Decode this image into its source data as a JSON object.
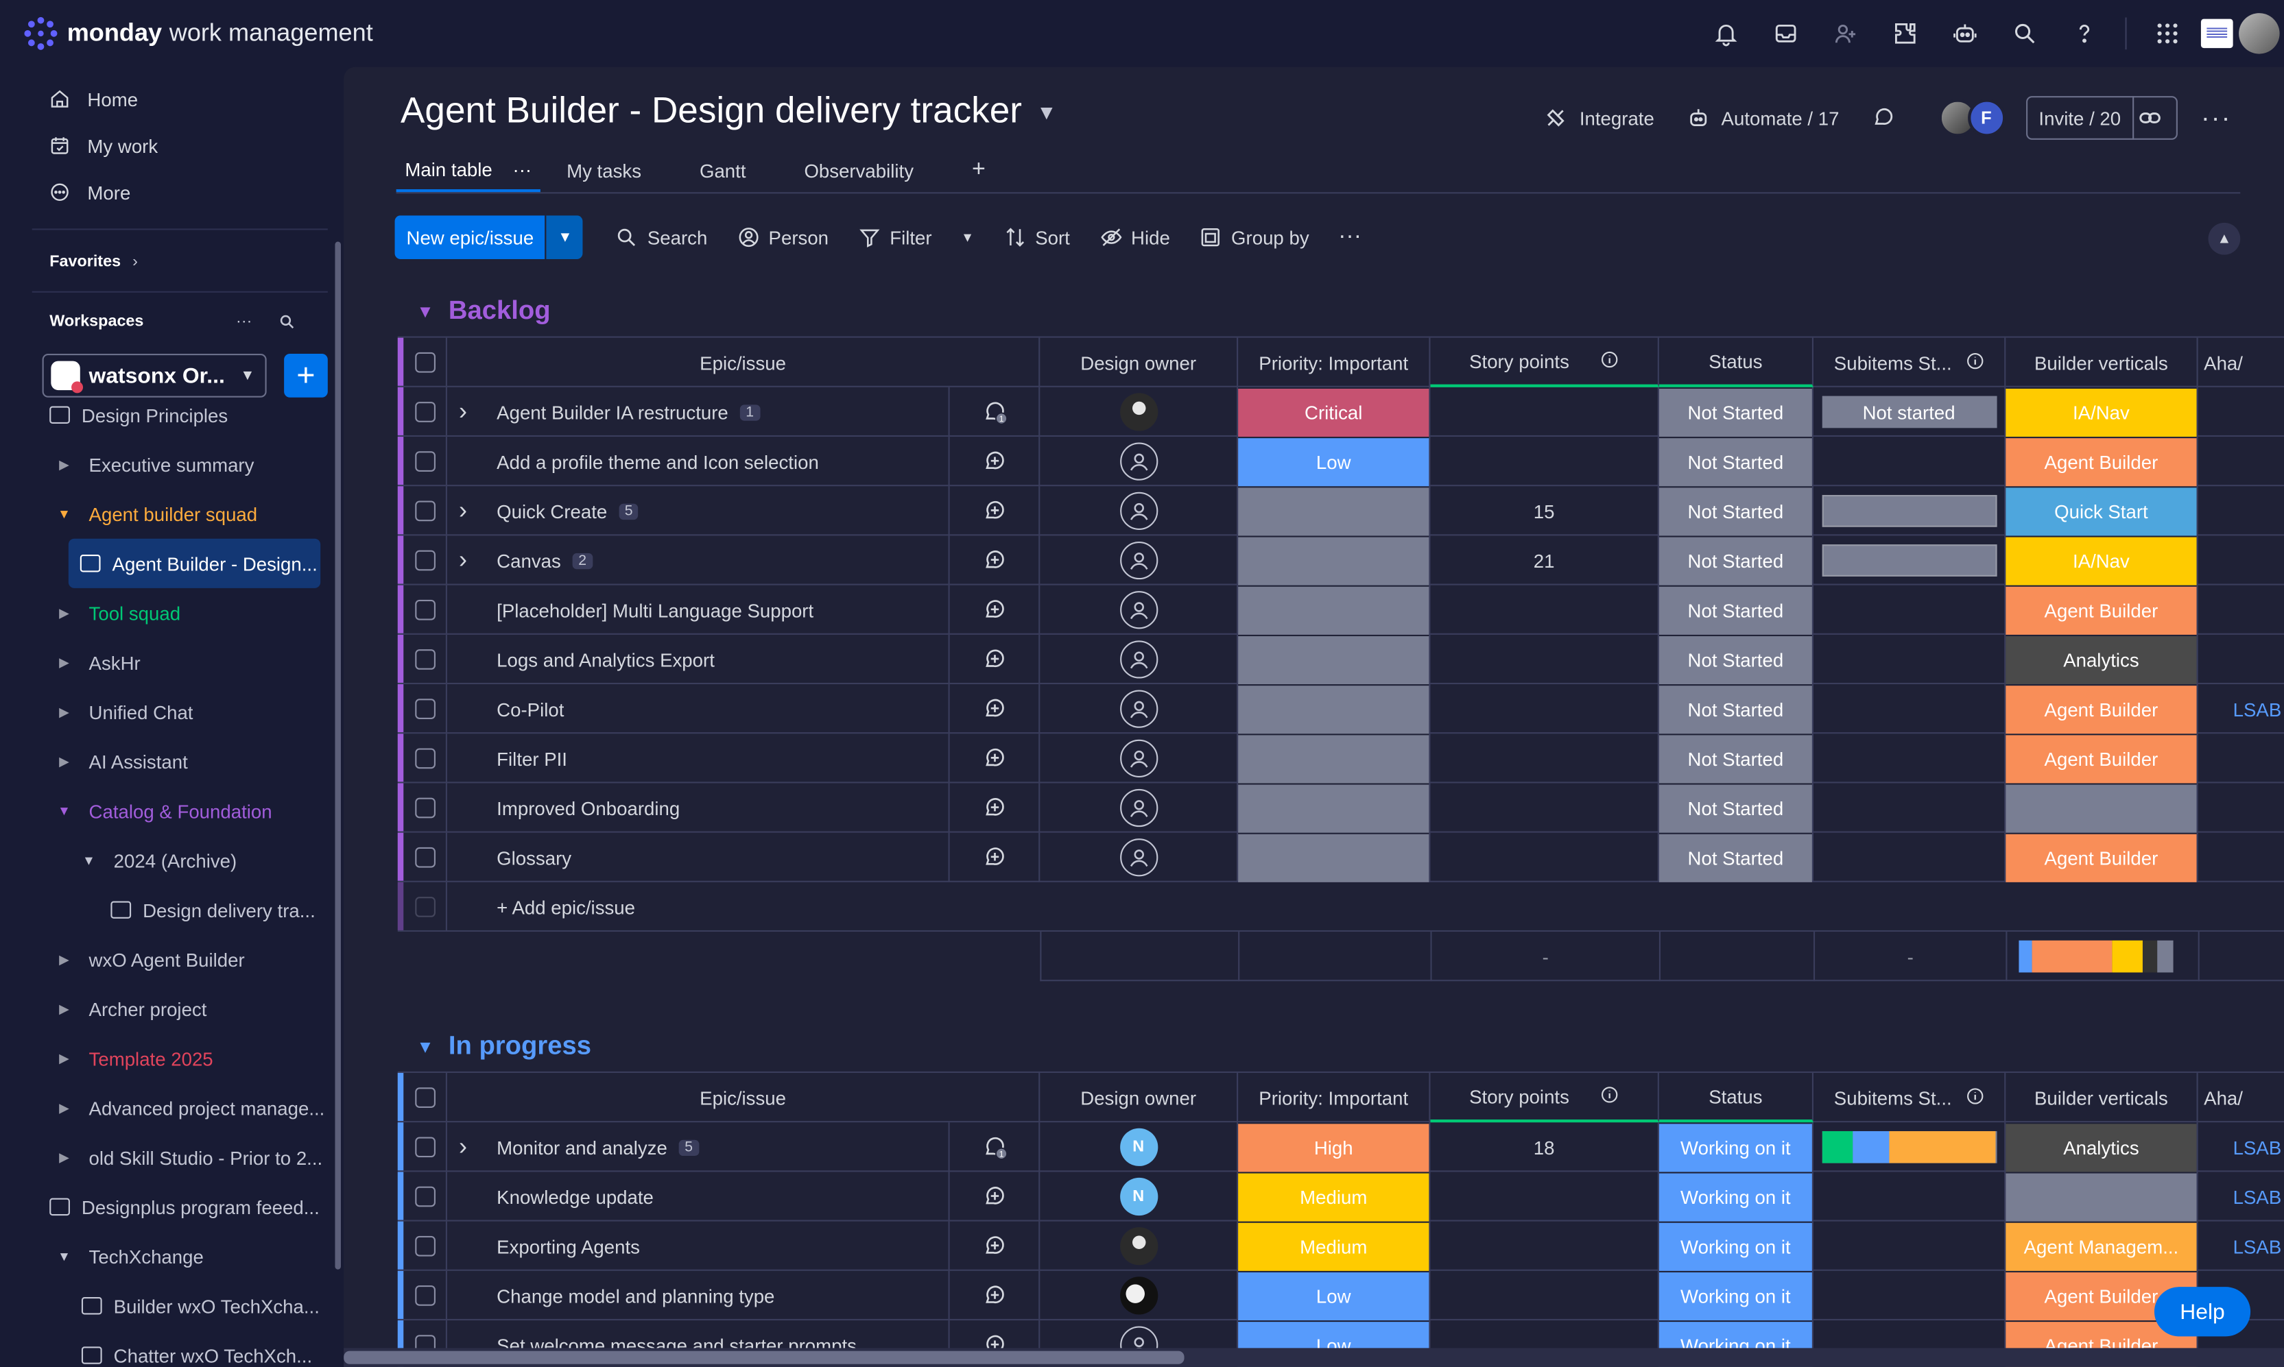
{
  "app": {
    "brand": "monday",
    "product": "work management"
  },
  "nav": {
    "home": "Home",
    "my_work": "My work",
    "more": "More"
  },
  "favorites": "Favorites",
  "workspaces": {
    "label": "Workspaces",
    "current": "watsonx Or...",
    "more": "···"
  },
  "tree": [
    {
      "label": "Design Principles",
      "type": "board",
      "indent": 1,
      "color": "#c3c6d4"
    },
    {
      "label": "Executive summary",
      "type": "folder",
      "indent": 1,
      "caret": "▶",
      "color": "#c3c6d4"
    },
    {
      "label": "Agent builder squad",
      "type": "folder",
      "indent": 1,
      "caret": "▼",
      "color": "#fdab3d"
    },
    {
      "label": "Agent Builder - Design...",
      "type": "board",
      "indent": 2,
      "selected": true,
      "color": "#ffffff"
    },
    {
      "label": "Tool squad",
      "type": "folder",
      "indent": 1,
      "caret": "▶",
      "color": "#00c875"
    },
    {
      "label": "AskHr",
      "type": "folder",
      "indent": 1,
      "caret": "▶",
      "color": "#c3c6d4"
    },
    {
      "label": "Unified Chat",
      "type": "folder",
      "indent": 1,
      "caret": "▶",
      "color": "#c3c6d4"
    },
    {
      "label": "AI Assistant",
      "type": "folder",
      "indent": 1,
      "caret": "▶",
      "color": "#c3c6d4"
    },
    {
      "label": "Catalog & Foundation",
      "type": "folder",
      "indent": 1,
      "caret": "▼",
      "color": "#a25ddc"
    },
    {
      "label": "2024 (Archive)",
      "type": "folder",
      "indent": 2,
      "caret": "▼",
      "color": "#c3c6d4"
    },
    {
      "label": "Design delivery tra...",
      "type": "board",
      "indent": 3,
      "color": "#c3c6d4"
    },
    {
      "label": "wxO Agent Builder",
      "type": "folder",
      "indent": 1,
      "caret": "▶",
      "color": "#c3c6d4"
    },
    {
      "label": "Archer project",
      "type": "folder",
      "indent": 1,
      "caret": "▶",
      "color": "#c3c6d4"
    },
    {
      "label": "Template 2025",
      "type": "folder",
      "indent": 1,
      "caret": "▶",
      "color": "#e2445c"
    },
    {
      "label": "Advanced project manage...",
      "type": "folder",
      "indent": 1,
      "caret": "▶",
      "color": "#c3c6d4"
    },
    {
      "label": "old Skill Studio - Prior to 2...",
      "type": "folder",
      "indent": 1,
      "caret": "▶",
      "color": "#c3c6d4"
    },
    {
      "label": "Designplus program feeed...",
      "type": "board",
      "indent": 0,
      "color": "#c3c6d4"
    },
    {
      "label": "TechXchange",
      "type": "folder",
      "indent": 1,
      "caret": "▼",
      "color": "#c3c6d4"
    },
    {
      "label": "Builder wxO TechXcha...",
      "type": "board",
      "indent": 2,
      "color": "#c3c6d4"
    },
    {
      "label": "Chatter wxO TechXch...",
      "type": "board",
      "indent": 2,
      "color": "#c3c6d4"
    }
  ],
  "board": {
    "title": "Agent Builder - Design delivery tracker",
    "integrate": "Integrate",
    "automate": "Automate / 17",
    "invite": "Invite / 20",
    "avatar_initial": "F",
    "tabs": [
      "Main table",
      "My tasks",
      "Gantt",
      "Observability"
    ],
    "tab_more": "···",
    "tab_add": "+"
  },
  "toolbar": {
    "new": "New epic/issue",
    "search": "Search",
    "person": "Person",
    "filter": "Filter",
    "sort": "Sort",
    "hide": "Hide",
    "group_by": "Group by",
    "more": "···"
  },
  "columns": {
    "epic": "Epic/issue",
    "owner": "Design owner",
    "priority": "Priority: Important",
    "points": "Story points",
    "status": "Status",
    "subitems": "Subitems St...",
    "verticals": "Builder verticals",
    "aha": "Aha/"
  },
  "groups": [
    {
      "title": "Backlog",
      "color": "#a25ddc",
      "add_label": "+ Add epic/issue",
      "summary_points": "-",
      "summary_sub": "-",
      "summary_bar": [
        {
          "color": "#579bfc",
          "pct": 8
        },
        {
          "color": "#fdab3d",
          "pct": 0
        },
        {
          "color": "#f98e58",
          "pct": 48
        },
        {
          "color": "#ffcb00",
          "pct": 18
        },
        {
          "color": "#333333",
          "pct": 8
        },
        {
          "color": "#797e93",
          "pct": 10
        }
      ],
      "rows": [
        {
          "name": "Agent Builder IA restructure",
          "count": "1",
          "expand": true,
          "upd": "1",
          "owner": "photo",
          "priority": "Critical",
          "pri_color": "#c65271",
          "points": "",
          "status": "Not Started",
          "st_color": "#797e93",
          "sub": "Not started",
          "sub_type": "text",
          "vertical": "IA/Nav",
          "v_color": "#ffcb00",
          "aha": ""
        },
        {
          "name": "Add a profile theme and Icon selection",
          "count": "",
          "expand": false,
          "upd": "",
          "owner": "empty",
          "priority": "Low",
          "pri_color": "#579bfc",
          "points": "",
          "status": "Not Started",
          "st_color": "#797e93",
          "sub": "",
          "sub_type": "none",
          "vertical": "Agent Builder",
          "v_color": "#f98e58",
          "aha": ""
        },
        {
          "name": "Quick Create",
          "count": "5",
          "expand": true,
          "upd": "",
          "owner": "empty",
          "priority": "",
          "pri_color": "#797e93",
          "points": "15",
          "status": "Not Started",
          "st_color": "#797e93",
          "sub": "",
          "sub_type": "bar",
          "vertical": "Quick Start",
          "v_color": "#4ea6dd",
          "aha": ""
        },
        {
          "name": "Canvas",
          "count": "2",
          "expand": true,
          "upd": "",
          "owner": "empty",
          "priority": "",
          "pri_color": "#797e93",
          "points": "21",
          "status": "Not Started",
          "st_color": "#797e93",
          "sub": "",
          "sub_type": "bar",
          "vertical": "IA/Nav",
          "v_color": "#ffcb00",
          "aha": ""
        },
        {
          "name": "[Placeholder] Multi Language Support",
          "count": "",
          "expand": false,
          "upd": "",
          "owner": "empty",
          "priority": "",
          "pri_color": "#797e93",
          "points": "",
          "status": "Not Started",
          "st_color": "#797e93",
          "sub": "",
          "sub_type": "none",
          "vertical": "Agent Builder",
          "v_color": "#f98e58",
          "aha": ""
        },
        {
          "name": "Logs and Analytics Export",
          "count": "",
          "expand": false,
          "upd": "",
          "owner": "empty",
          "priority": "",
          "pri_color": "#797e93",
          "points": "",
          "status": "Not Started",
          "st_color": "#797e93",
          "sub": "",
          "sub_type": "none",
          "vertical": "Analytics",
          "v_color": "#4a4a4a",
          "aha": ""
        },
        {
          "name": "Co-Pilot",
          "count": "",
          "expand": false,
          "upd": "",
          "owner": "empty",
          "priority": "",
          "pri_color": "#797e93",
          "points": "",
          "status": "Not Started",
          "st_color": "#797e93",
          "sub": "",
          "sub_type": "none",
          "vertical": "Agent Builder",
          "v_color": "#f98e58",
          "aha": "LSAB"
        },
        {
          "name": "Filter PII",
          "count": "",
          "expand": false,
          "upd": "",
          "owner": "empty",
          "priority": "",
          "pri_color": "#797e93",
          "points": "",
          "status": "Not Started",
          "st_color": "#797e93",
          "sub": "",
          "sub_type": "none",
          "vertical": "Agent Builder",
          "v_color": "#f98e58",
          "aha": ""
        },
        {
          "name": "Improved Onboarding",
          "count": "",
          "expand": false,
          "upd": "",
          "owner": "empty",
          "priority": "",
          "pri_color": "#797e93",
          "points": "",
          "status": "Not Started",
          "st_color": "#797e93",
          "sub": "",
          "sub_type": "none",
          "vertical": "",
          "v_color": "#797e93",
          "aha": ""
        },
        {
          "name": "Glossary",
          "count": "",
          "expand": false,
          "upd": "",
          "owner": "empty",
          "priority": "",
          "pri_color": "#797e93",
          "points": "",
          "status": "Not Started",
          "st_color": "#797e93",
          "sub": "",
          "sub_type": "none",
          "vertical": "Agent Builder",
          "v_color": "#f98e58",
          "aha": ""
        }
      ]
    },
    {
      "title": "In progress",
      "color": "#579bfc",
      "add_label": "",
      "rows": [
        {
          "name": "Monitor and analyze",
          "count": "5",
          "expand": true,
          "upd": "1",
          "owner": "N",
          "priority": "High",
          "pri_color": "#f98e58",
          "points": "18",
          "status": "Working on it",
          "st_color": "#579bfc",
          "sub": "",
          "sub_type": "multi",
          "vertical": "Analytics",
          "v_color": "#4a4a4a",
          "aha": "LSAB"
        },
        {
          "name": "Knowledge update",
          "count": "",
          "expand": false,
          "upd": "",
          "owner": "N",
          "priority": "Medium",
          "pri_color": "#ffcb00",
          "points": "",
          "status": "Working on it",
          "st_color": "#579bfc",
          "sub": "",
          "sub_type": "none",
          "vertical": "",
          "v_color": "#797e93",
          "aha": "LSAB"
        },
        {
          "name": "Exporting Agents",
          "count": "",
          "expand": false,
          "upd": "",
          "owner": "photo",
          "priority": "Medium",
          "pri_color": "#ffcb00",
          "points": "",
          "status": "Working on it",
          "st_color": "#579bfc",
          "sub": "",
          "sub_type": "none",
          "vertical": "Agent Managem...",
          "v_color": "#fdab3d",
          "aha": "LSAB"
        },
        {
          "name": "Change model and planning type",
          "count": "",
          "expand": false,
          "upd": "",
          "owner": "photo2",
          "priority": "Low",
          "pri_color": "#579bfc",
          "points": "",
          "status": "Working on it",
          "st_color": "#579bfc",
          "sub": "",
          "sub_type": "none",
          "vertical": "Agent Builder",
          "v_color": "#f98e58",
          "aha": ""
        },
        {
          "name": "Set welcome message and starter prompts",
          "count": "",
          "expand": false,
          "upd": "",
          "owner": "empty",
          "priority": "Low",
          "pri_color": "#579bfc",
          "points": "",
          "status": "Working on it",
          "st_color": "#579bfc",
          "sub": "",
          "sub_type": "none",
          "vertical": "Agent Builder",
          "v_color": "#f98e58",
          "aha": ""
        }
      ]
    }
  ],
  "help": "Help",
  "colors": {
    "bg": "#181b34",
    "surface": "#1f2136",
    "accent": "#0073ea",
    "border": "#3a3d5c"
  }
}
